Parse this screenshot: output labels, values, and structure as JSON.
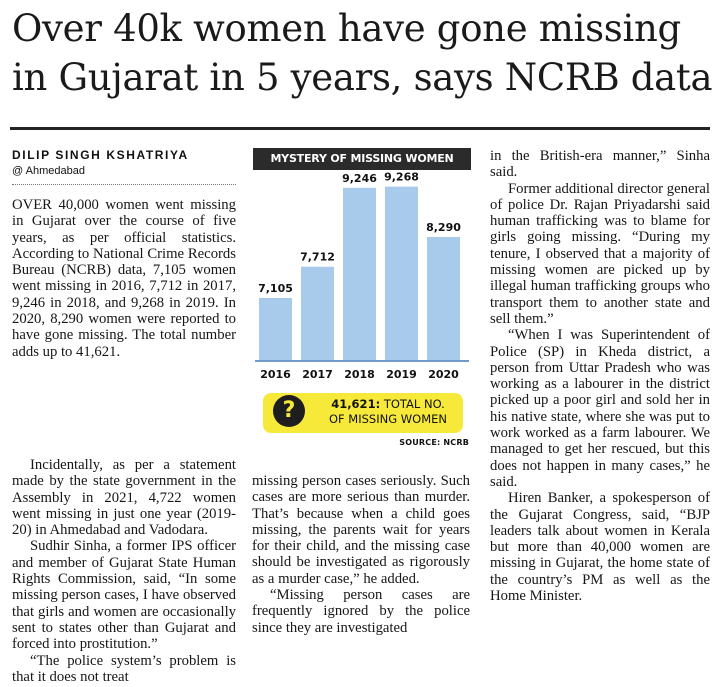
{
  "headline": {
    "line1": "Over 40k women have gone missing",
    "line2": "in Gujarat in 5 years, says NCRB data"
  },
  "byline": {
    "author": "DILIP SINGH KSHATRIYA",
    "location": "@ Ahmedabad"
  },
  "chart_data": {
    "type": "bar",
    "title": "MYSTERY OF MISSING WOMEN",
    "categories": [
      "2016",
      "2017",
      "2018",
      "2019",
      "2020"
    ],
    "values": [
      7105,
      7712,
      9246,
      9268,
      8290
    ],
    "value_labels": [
      "7,105",
      "7,712",
      "9,246",
      "9,268",
      "8,290"
    ],
    "ylim": [
      5900,
      9300
    ],
    "bar_color": "#a9cbeb",
    "axis_color": "#6f9cc8",
    "callout": {
      "total": "41,621:",
      "text_line1": " TOTAL NO.",
      "text_line2": "OF MISSING WOMEN",
      "icon": "question-mark-icon",
      "color": "#f7e93a"
    },
    "source": "SOURCE: NCRB"
  },
  "article": {
    "col1": [
      "OVER 40,000 women went missing in Gujarat over the course of five years, as per official statistics. According to National Crime Records Bureau (NCRB) data, 7,105 women went missing in 2016, 7,712 in 2017, 9,246 in 2018, and 9,268 in 2019. In 2020, 8,290 women were reported to have gone missing. The total number adds up to 41,621."
    ],
    "col1b": [
      "Incidentally, as per a statement made by the state government in the Assembly in 2021, 4,722 women went missing in just one year (2019-20) in Ahmedabad and Vadodara.",
      "Sudhir Sinha, a former IPS officer and member of Gujarat State Human Rights Commission, said, “In some missing person cases, I have observed that girls and women are occasionally sent to states other than Gujarat and forced into prostitution.”",
      "“The police system’s problem is that it does not treat"
    ],
    "col2": [
      "missing person cases seriously. Such cases are more serious than murder. That’s because when a child goes missing, the parents wait for years for their child, and the missing case should be investigated as rigorously as a murder case,” he added.",
      "“Missing person cases are frequently ignored by the police since they are investigated"
    ],
    "col3": [
      "in the British-era manner,” Sinha said.",
      "Former additional director general of police Dr. Rajan Priyadarshi said human trafficking was to blame for girls going missing. “During my tenure, I observed that a majority of missing women are picked up by illegal human trafficking groups who transport them to another state and sell them.”",
      "“When I was Superintendent of Police (SP) in Kheda district, a person from Uttar Pradesh who was working as a labourer in the district picked up a poor girl and sold her in his native state, where she was put to work worked as a farm labourer. We managed to get her rescued, but this does not happen in many cases,” he said.",
      "Hiren Banker, a spokesperson of the Gujarat Congress, said, “BJP leaders talk about women in Kerala but more than 40,000 women are missing in Gujarat, the home state of the country’s PM as well as the Home Minister."
    ]
  }
}
